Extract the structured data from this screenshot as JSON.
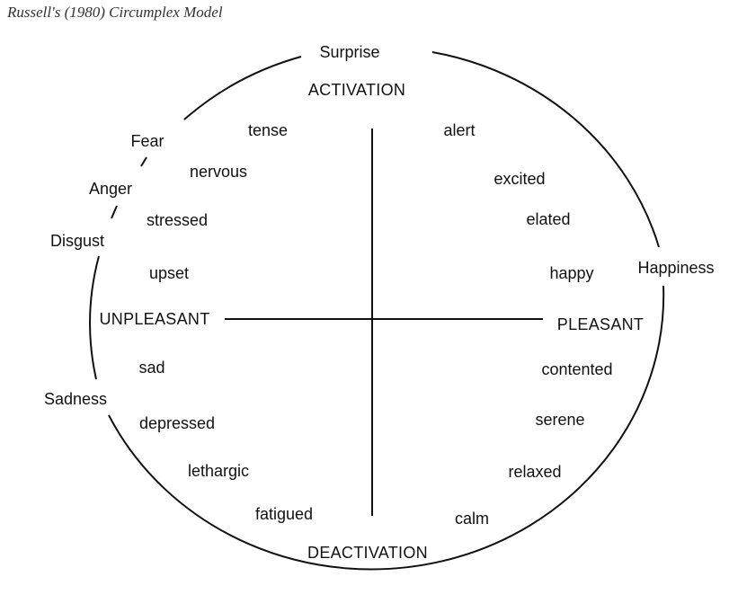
{
  "caption": "Russell's (1980) Circumplex Model",
  "axes": {
    "top": "ACTIVATION",
    "bottom": "DEACTIVATION",
    "left": "UNPLEASANT",
    "right": "PLEASANT"
  },
  "emotions": {
    "surprise": "Surprise",
    "fear": "Fear",
    "anger": "Anger",
    "disgust": "Disgust",
    "happiness": "Happiness",
    "sadness": "Sadness"
  },
  "affects": {
    "tense": "tense",
    "nervous": "nervous",
    "stressed": "stressed",
    "upset": "upset",
    "alert": "alert",
    "excited": "excited",
    "elated": "elated",
    "happy": "happy",
    "sad": "sad",
    "depressed": "depressed",
    "lethargic": "lethargic",
    "fatigued": "fatigued",
    "contented": "contented",
    "serene": "serene",
    "relaxed": "relaxed",
    "calm": "calm"
  }
}
